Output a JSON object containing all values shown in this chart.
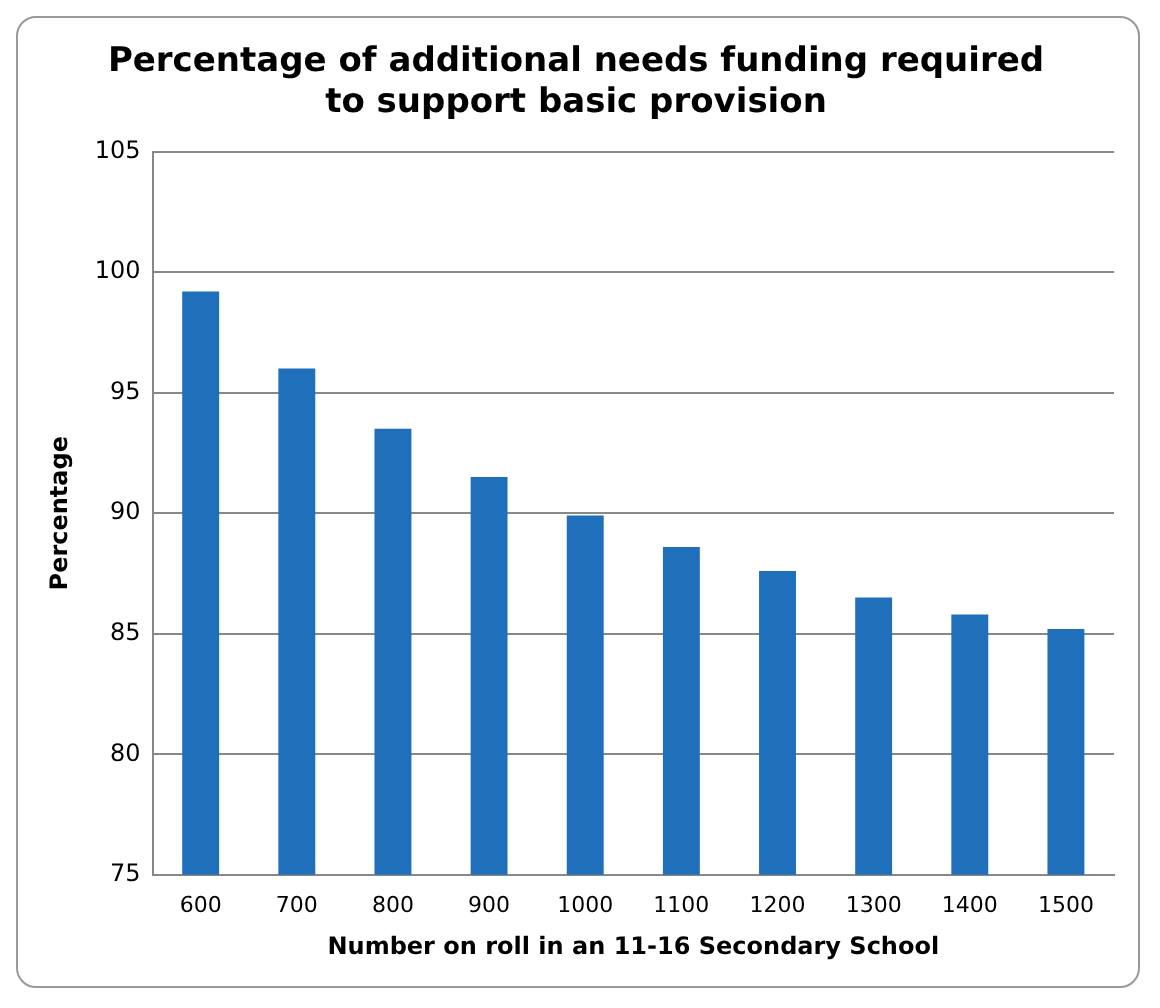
{
  "chart_data": {
    "type": "bar",
    "title": "Percentage of additional needs funding required\nto support basic provision",
    "xlabel": "Number on roll in an 11-16 Secondary School",
    "ylabel": "Percentage",
    "categories": [
      "600",
      "700",
      "800",
      "900",
      "1000",
      "1100",
      "1200",
      "1300",
      "1400",
      "1500"
    ],
    "values": [
      99.2,
      96.0,
      93.5,
      91.5,
      89.9,
      88.6,
      87.6,
      86.5,
      85.8,
      85.2
    ],
    "color": "#1f6fba",
    "ylim": [
      75,
      105
    ],
    "yticks": [
      75,
      80,
      85,
      90,
      95,
      100,
      105
    ],
    "grid": "y",
    "legend": false
  }
}
